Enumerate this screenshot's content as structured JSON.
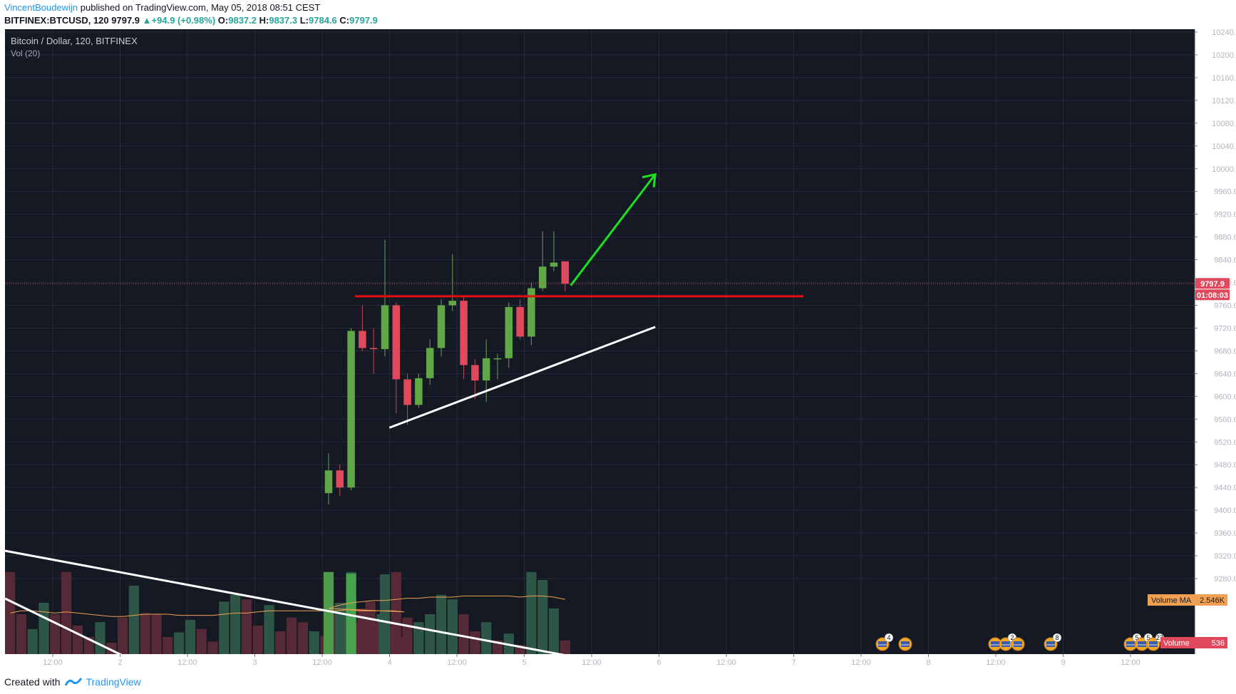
{
  "header": {
    "author": "VincentBoudewijn",
    "published_text": "published on TradingView.com, May 05, 2018 08:51 CEST",
    "symbol_line": "BITFINEX:BTCUSD, 120",
    "last": "9797.9",
    "change": "+94.9 (+0.98%)",
    "o_label": "O:",
    "o": "9837.2",
    "h_label": "H:",
    "h": "9837.3",
    "l_label": "L:",
    "l": "9784.6",
    "c_label": "C:",
    "c": "9797.9"
  },
  "legend": {
    "title": "Bitcoin / Dollar, 120, BITFINEX",
    "volume_indicator": "Vol (20)"
  },
  "footer": {
    "created_with": "Created with",
    "brand": "TradingView"
  },
  "colors": {
    "background": "#151924",
    "up": "#6ba583",
    "down": "#d75442",
    "up_candle": "#5fa845",
    "down_candle": "#e0495b",
    "resistance": "#e01010",
    "trend": "#ffffff",
    "arrow": "#1ee01e",
    "volume_ma": "#f0a050"
  },
  "chart_data": {
    "type": "candlestick",
    "title": "Bitcoin / Dollar, 120, BITFINEX",
    "y_axis": {
      "ylim": [
        9260,
        10250
      ],
      "ticks": [
        "10240.0",
        "10200.0",
        "10160.0",
        "10120.0",
        "10080.0",
        "10040.0",
        "10000.0",
        "9960.0",
        "9920.0",
        "9880.0",
        "9840.0",
        "9800.0",
        "9760.0",
        "9720.0",
        "9680.0",
        "9640.0",
        "9600.0",
        "9560.0",
        "9520.0",
        "9480.0",
        "9440.0",
        "9400.0",
        "9360.0",
        "9320.0",
        "9280.0"
      ]
    },
    "x_axis": {
      "ticks": [
        "12:00",
        "2",
        "12:00",
        "3",
        "12:00",
        "4",
        "12:00",
        "5",
        "12:00",
        "6",
        "12:00",
        "7",
        "12:00",
        "8",
        "12:00",
        "9",
        "12:00"
      ]
    },
    "last_price_label": "9797.9",
    "countdown_label": "01:08:03",
    "volume_ma_label": "Volume MA",
    "volume_ma_value": "2.546K",
    "volume_label": "Volume",
    "volume_value": "536",
    "candles": [
      {
        "o": 9430,
        "h": 9500,
        "l": 9410,
        "c": 9470
      },
      {
        "o": 9470,
        "h": 9480,
        "l": 9425,
        "c": 9440
      },
      {
        "o": 9440,
        "h": 9720,
        "l": 9435,
        "c": 9715
      },
      {
        "o": 9715,
        "h": 9760,
        "l": 9680,
        "c": 9685
      },
      {
        "o": 9685,
        "h": 9720,
        "l": 9640,
        "c": 9683
      },
      {
        "o": 9683,
        "h": 9875,
        "l": 9670,
        "c": 9760
      },
      {
        "o": 9760,
        "h": 9765,
        "l": 9570,
        "c": 9630
      },
      {
        "o": 9630,
        "h": 9640,
        "l": 9550,
        "c": 9585
      },
      {
        "o": 9585,
        "h": 9640,
        "l": 9580,
        "c": 9632
      },
      {
        "o": 9632,
        "h": 9700,
        "l": 9620,
        "c": 9685
      },
      {
        "o": 9685,
        "h": 9770,
        "l": 9670,
        "c": 9760
      },
      {
        "o": 9760,
        "h": 9850,
        "l": 9750,
        "c": 9768
      },
      {
        "o": 9768,
        "h": 9775,
        "l": 9630,
        "c": 9655
      },
      {
        "o": 9655,
        "h": 9665,
        "l": 9595,
        "c": 9628
      },
      {
        "o": 9628,
        "h": 9700,
        "l": 9590,
        "c": 9667
      },
      {
        "o": 9665,
        "h": 9675,
        "l": 9630,
        "c": 9667
      },
      {
        "o": 9667,
        "h": 9765,
        "l": 9650,
        "c": 9757
      },
      {
        "o": 9757,
        "h": 9770,
        "l": 9700,
        "c": 9705
      },
      {
        "o": 9705,
        "h": 9800,
        "l": 9690,
        "c": 9790
      },
      {
        "o": 9790,
        "h": 9890,
        "l": 9785,
        "c": 9828
      },
      {
        "o": 9828,
        "h": 9890,
        "l": 9820,
        "c": 9835
      },
      {
        "o": 9837.2,
        "h": 9837.3,
        "l": 9784.6,
        "c": 9797.9
      }
    ],
    "volumes_pre": [
      {
        "v": 0.72,
        "up": false
      },
      {
        "v": 0.35,
        "up": false
      },
      {
        "v": 0.22,
        "up": true
      },
      {
        "v": 0.45,
        "up": true
      },
      {
        "v": 0.35,
        "up": false
      },
      {
        "v": 0.72,
        "up": false
      },
      {
        "v": 0.25,
        "up": false
      },
      {
        "v": 0.15,
        "up": false
      },
      {
        "v": 0.28,
        "up": true
      },
      {
        "v": 0.1,
        "up": false
      },
      {
        "v": 0.32,
        "up": false
      },
      {
        "v": 0.6,
        "up": true
      },
      {
        "v": 0.36,
        "up": false
      },
      {
        "v": 0.35,
        "up": false
      },
      {
        "v": 0.15,
        "up": false
      },
      {
        "v": 0.19,
        "up": true
      },
      {
        "v": 0.3,
        "up": true
      },
      {
        "v": 0.22,
        "up": false
      },
      {
        "v": 0.11,
        "up": false
      },
      {
        "v": 0.46,
        "up": true
      },
      {
        "v": 0.52,
        "up": true
      },
      {
        "v": 0.48,
        "up": false
      },
      {
        "v": 0.25,
        "up": false
      },
      {
        "v": 0.43,
        "up": true
      },
      {
        "v": 0.2,
        "up": false
      },
      {
        "v": 0.32,
        "up": false
      },
      {
        "v": 0.28,
        "up": false
      },
      {
        "v": 0.2,
        "up": true
      },
      {
        "v": 0.16,
        "up": false
      },
      {
        "v": 0.35,
        "up": false
      },
      {
        "v": 0.45,
        "up": true
      },
      {
        "v": 0.28,
        "up": false
      },
      {
        "v": 0.46,
        "up": false
      },
      {
        "v": 0.35,
        "up": true
      },
      {
        "v": 0.28,
        "up": false
      },
      {
        "v": 0.15,
        "up": false
      }
    ],
    "volumes_main": [
      {
        "v": 0.72,
        "up": false
      },
      {
        "v": 0.45,
        "up": true
      },
      {
        "v": 0.72,
        "up": true
      },
      {
        "v": 0.4,
        "up": false
      },
      {
        "v": 0.28,
        "up": false
      },
      {
        "v": 0.7,
        "up": true
      },
      {
        "v": 0.72,
        "up": false
      },
      {
        "v": 0.32,
        "up": false
      },
      {
        "v": 0.28,
        "up": true
      },
      {
        "v": 0.35,
        "up": true
      },
      {
        "v": 0.52,
        "up": true
      },
      {
        "v": 0.48,
        "up": true
      },
      {
        "v": 0.35,
        "up": false
      },
      {
        "v": 0.2,
        "up": false
      },
      {
        "v": 0.28,
        "up": true
      },
      {
        "v": 0.12,
        "up": false
      },
      {
        "v": 0.18,
        "up": true
      },
      {
        "v": 0.08,
        "up": false
      },
      {
        "v": 0.72,
        "up": true
      },
      {
        "v": 0.65,
        "up": true
      },
      {
        "v": 0.4,
        "up": true
      },
      {
        "v": 0.12,
        "up": false
      }
    ],
    "annotations": [
      {
        "type": "horizontal_resistance",
        "price": 9776
      },
      {
        "type": "ascending_trendline",
        "from": {
          "idx": 5.4,
          "price": 9545
        },
        "to": {
          "idx": 29,
          "price": 9722
        }
      },
      {
        "type": "upward_arrow",
        "from": {
          "idx": 21.5,
          "price": 9795
        },
        "to": {
          "idx": 29,
          "price": 9990
        }
      },
      {
        "type": "descending_trendline",
        "description": "long downtrend line in lower left"
      }
    ],
    "event_badges": [
      "4",
      "",
      "",
      "2",
      "",
      "8",
      "5",
      "5",
      "27"
    ]
  }
}
